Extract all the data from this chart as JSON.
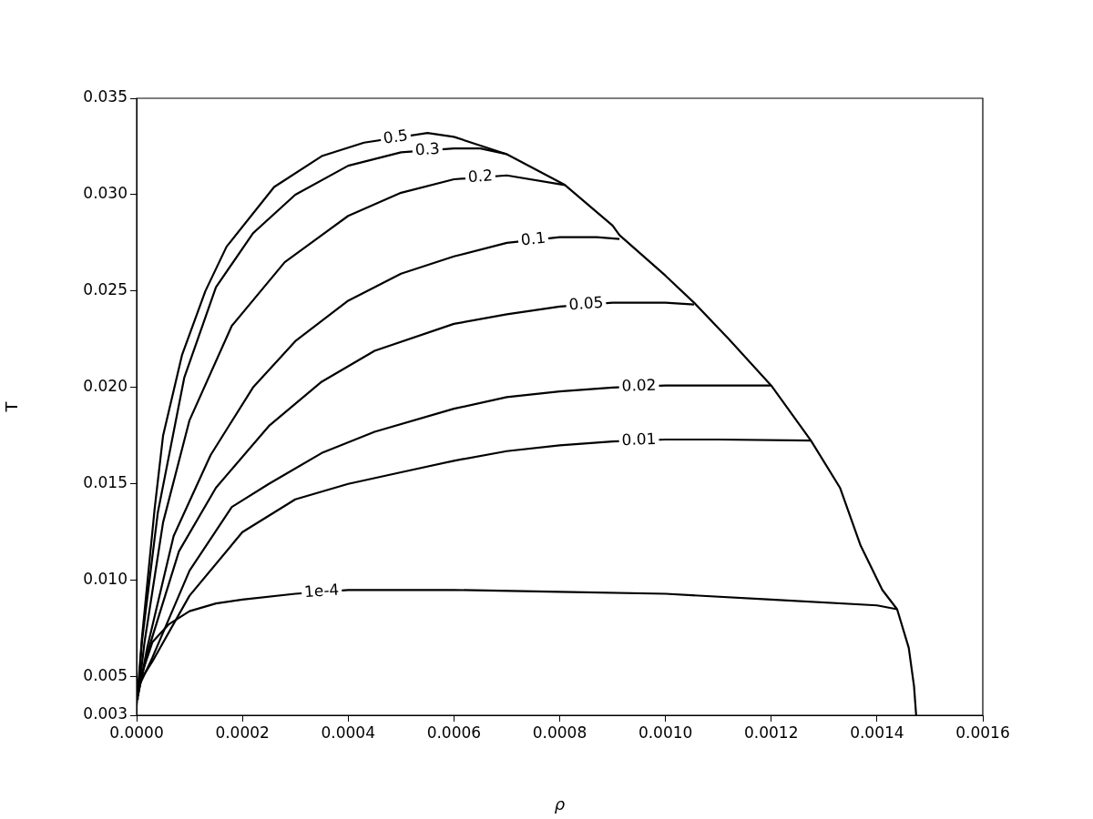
{
  "chart_data": {
    "type": "line",
    "xlabel": "ρ",
    "ylabel": "T",
    "xlim": [
      0,
      0.0016
    ],
    "ylim": [
      0.003,
      0.035
    ],
    "xticks": [
      {
        "value": 0,
        "label": "0.0000"
      },
      {
        "value": 0.0002,
        "label": "0.0002"
      },
      {
        "value": 0.0004,
        "label": "0.0004"
      },
      {
        "value": 0.0006,
        "label": "0.0006"
      },
      {
        "value": 0.0008,
        "label": "0.0008"
      },
      {
        "value": 0.001,
        "label": "0.0010"
      },
      {
        "value": 0.0012,
        "label": "0.0012"
      },
      {
        "value": 0.0014,
        "label": "0.0014"
      },
      {
        "value": 0.0016,
        "label": "0.0016"
      }
    ],
    "yticks": [
      0.003,
      0.005,
      {
        "value": 0.01,
        "label": "0.010"
      },
      0.015,
      {
        "value": 0.02,
        "label": "0.020"
      },
      0.025,
      {
        "value": 0.03,
        "label": "0.030"
      },
      0.035
    ],
    "grid": false,
    "legend": false,
    "marker": "none",
    "line_style": "solid",
    "series": [
      {
        "name": "0.5",
        "color": "#000000",
        "x": [
          0,
          1e-05,
          3.4e-05,
          5e-05,
          8.6e-05,
          0.00013,
          0.00017,
          0.00026,
          0.00035,
          0.00043,
          0.00055,
          0.0006,
          0.0007,
          0.00081,
          0.0009,
          0.000913,
          0.001,
          0.001054,
          0.00112,
          0.0012,
          0.001275,
          0.00133,
          0.001369,
          0.00141,
          0.001438,
          0.00146,
          0.00147,
          0.001474
        ],
        "values": [
          0.0035,
          0.007,
          0.0137,
          0.0175,
          0.0217,
          0.025,
          0.0273,
          0.0304,
          0.032,
          0.0327,
          0.0332,
          0.033,
          0.0321,
          0.0305,
          0.0284,
          0.0279,
          0.0258,
          0.0244,
          0.0225,
          0.0201,
          0.01725,
          0.0148,
          0.0118,
          0.0095,
          0.0085,
          0.0065,
          0.0045,
          0.003
        ]
      },
      {
        "name": "0.3",
        "color": "#000000",
        "x": [
          2e-06,
          1e-05,
          4e-05,
          9e-05,
          0.00015,
          0.00022,
          0.0003,
          0.0004,
          0.0005,
          0.0006,
          0.00065,
          0.0007
        ],
        "values": [
          0.0038,
          0.0068,
          0.0135,
          0.0205,
          0.0252,
          0.028,
          0.03,
          0.0315,
          0.0322,
          0.0324,
          0.0324,
          0.0321
        ]
      },
      {
        "name": "0.2",
        "color": "#000000",
        "x": [
          3e-06,
          1.5e-05,
          5e-05,
          0.0001,
          0.00018,
          0.00028,
          0.0004,
          0.0005,
          0.0006,
          0.0007,
          0.00081
        ],
        "values": [
          0.004,
          0.0068,
          0.013,
          0.0183,
          0.0232,
          0.0265,
          0.0289,
          0.0301,
          0.0308,
          0.031,
          0.0305
        ]
      },
      {
        "name": "0.1",
        "color": "#000000",
        "x": [
          4e-06,
          2e-05,
          7e-05,
          0.00014,
          0.00022,
          0.0003,
          0.0004,
          0.0005,
          0.0006,
          0.0007,
          0.0008,
          0.00087,
          0.000913
        ],
        "values": [
          0.0042,
          0.0065,
          0.0123,
          0.0165,
          0.02,
          0.0224,
          0.0245,
          0.0259,
          0.0268,
          0.0275,
          0.0278,
          0.0278,
          0.0277
        ]
      },
      {
        "name": "0.05",
        "color": "#000000",
        "x": [
          5e-06,
          2e-05,
          8e-05,
          0.00015,
          0.00025,
          0.00035,
          0.00045,
          0.0006,
          0.0007,
          0.0008,
          0.0009,
          0.001,
          0.001054
        ],
        "values": [
          0.0044,
          0.0062,
          0.0115,
          0.0148,
          0.018,
          0.0203,
          0.0219,
          0.0233,
          0.0238,
          0.0242,
          0.0244,
          0.0244,
          0.0243
        ]
      },
      {
        "name": "0.02",
        "color": "#000000",
        "x": [
          6e-06,
          3e-05,
          0.0001,
          0.00018,
          0.00025,
          0.00035,
          0.00045,
          0.0006,
          0.0007,
          0.0008,
          0.0009,
          0.001,
          0.0012
        ],
        "values": [
          0.0046,
          0.006,
          0.0105,
          0.0138,
          0.015,
          0.0166,
          0.0177,
          0.0189,
          0.0195,
          0.0198,
          0.02,
          0.0201,
          0.0201
        ]
      },
      {
        "name": "0.01",
        "color": "#000000",
        "x": [
          7e-06,
          3e-05,
          0.0001,
          0.0002,
          0.0003,
          0.0004,
          0.0005,
          0.0006,
          0.0007,
          0.0008,
          0.0009,
          0.001,
          0.0011,
          0.001275
        ],
        "values": [
          0.0048,
          0.0058,
          0.0092,
          0.0125,
          0.0142,
          0.015,
          0.0156,
          0.0162,
          0.0167,
          0.017,
          0.0172,
          0.0173,
          0.0173,
          0.01725
        ]
      },
      {
        "name": "1e-4",
        "color": "#000000",
        "x": [
          8e-06,
          3e-05,
          6e-05,
          0.0001,
          0.00015,
          0.0002,
          0.0003,
          0.0004,
          0.0005,
          0.0006,
          0.0008,
          0.001,
          0.0012,
          0.0014,
          0.001438
        ],
        "values": [
          0.005,
          0.0068,
          0.0077,
          0.0084,
          0.0088,
          0.009,
          0.0093,
          0.0095,
          0.0095,
          0.0095,
          0.0094,
          0.0093,
          0.009,
          0.0087,
          0.0085
        ]
      }
    ]
  }
}
